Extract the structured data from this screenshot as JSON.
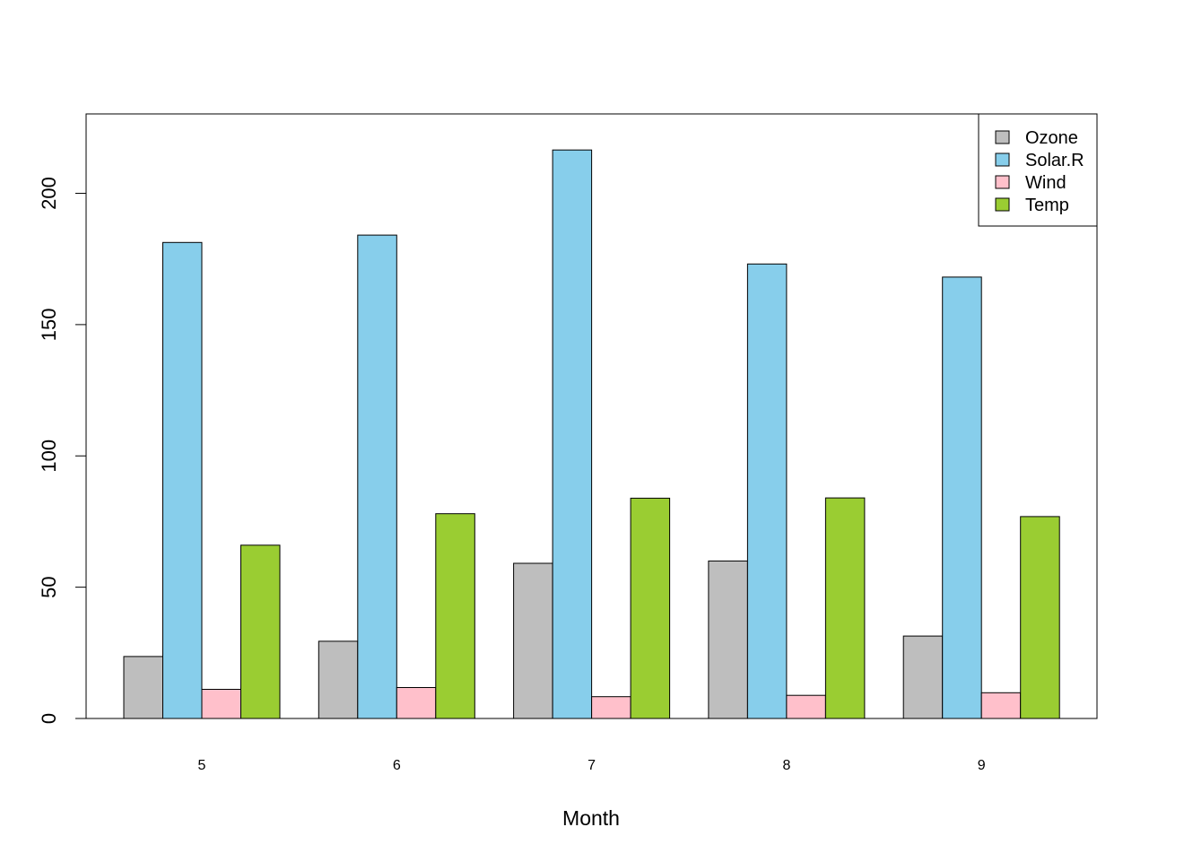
{
  "chart_data": {
    "type": "bar",
    "grouped": true,
    "title": "",
    "xlabel": "Month",
    "ylabel": "",
    "categories": [
      "5",
      "6",
      "7",
      "8",
      "9"
    ],
    "ylim": [
      0,
      230
    ],
    "yticks": [
      0,
      50,
      100,
      150,
      200
    ],
    "grid": false,
    "legend_position": "top-right",
    "series": [
      {
        "name": "Ozone",
        "color": "#bebebe",
        "values": [
          23.6,
          29.4,
          59.1,
          60.0,
          31.4
        ]
      },
      {
        "name": "Solar.R",
        "color": "#87ceeb",
        "values": [
          181.3,
          184.1,
          216.5,
          173.1,
          168.1
        ]
      },
      {
        "name": "Wind",
        "color": "#ffc0cb",
        "values": [
          11.1,
          11.8,
          8.3,
          8.8,
          9.8
        ]
      },
      {
        "name": "Temp",
        "color": "#9acd32",
        "values": [
          66.0,
          78.0,
          83.9,
          84.0,
          76.9
        ]
      }
    ]
  }
}
